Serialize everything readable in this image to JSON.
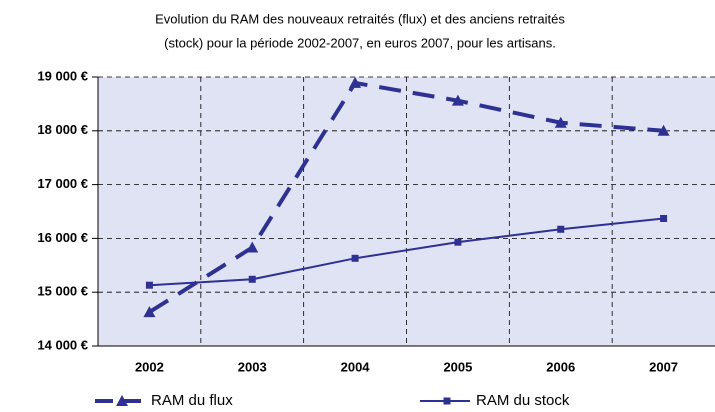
{
  "chart_data": {
    "type": "line",
    "title": [
      "Evolution du RAM des nouveaux retraités (flux) et des anciens retraités",
      "(stock) pour la période 2002-2007, en euros 2007, pour les artisans."
    ],
    "categories": [
      "2002",
      "2003",
      "2004",
      "2005",
      "2006",
      "2007"
    ],
    "series": [
      {
        "name": "RAM du flux",
        "color": "#2e3192",
        "line_style": "dashed",
        "marker": "triangle",
        "values": [
          14630,
          15830,
          18890,
          18560,
          18150,
          18000
        ]
      },
      {
        "name": "RAM du stock",
        "color": "#2e3192",
        "line_style": "solid",
        "marker": "square",
        "values": [
          15130,
          15240,
          15630,
          15930,
          16170,
          16370
        ]
      }
    ],
    "ylim": [
      14000,
      19000
    ],
    "yticks": [
      {
        "value": 14000,
        "label": "14 000 €"
      },
      {
        "value": 15000,
        "label": "15 000 €"
      },
      {
        "value": 16000,
        "label": "16 000 €"
      },
      {
        "value": 17000,
        "label": "17 000 €"
      },
      {
        "value": 18000,
        "label": "18 000 €"
      },
      {
        "value": 19000,
        "label": "19 000 €"
      }
    ],
    "grid": true,
    "legend": "bottom"
  }
}
